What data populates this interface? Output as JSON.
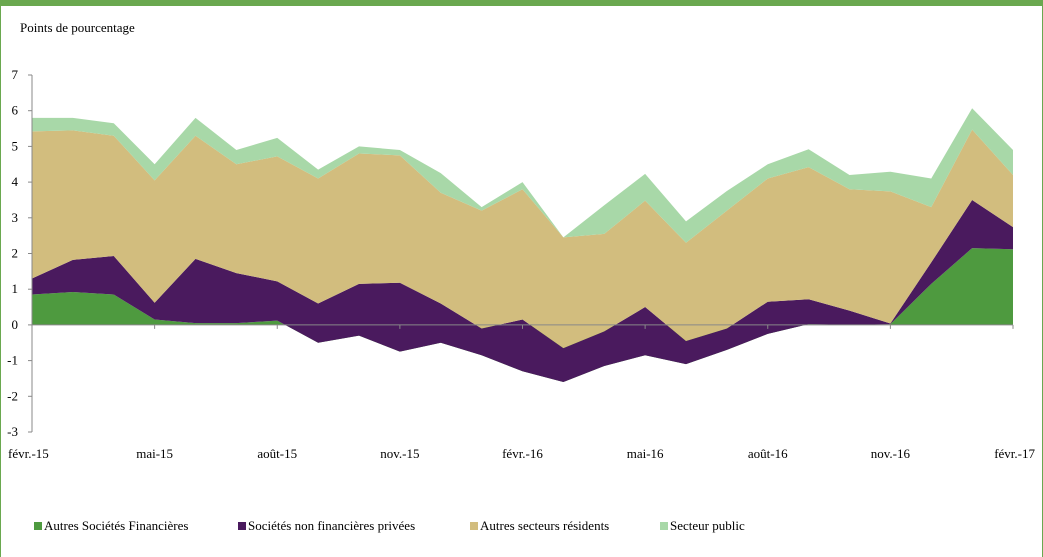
{
  "chart_data": {
    "type": "area",
    "stacked": true,
    "title": "",
    "unit_label": "Points de pourcentage",
    "xlabel": "",
    "ylabel": "",
    "ylim": [
      -3,
      7
    ],
    "yticks": [
      "-3",
      "-2",
      "-1",
      "0",
      "1",
      "2",
      "3",
      "4",
      "5",
      "6",
      "7"
    ],
    "x": [
      "févr.-15",
      "mars-15",
      "avr.-15",
      "mai-15",
      "juin-15",
      "juil.-15",
      "août-15",
      "sept.-15",
      "oct.-15",
      "nov.-15",
      "déc.-15",
      "janv.-16",
      "févr.-16",
      "mars-16",
      "avr.-16",
      "mai-16",
      "juin-16",
      "juil.-16",
      "août-16",
      "sept.-16",
      "oct.-16",
      "nov.-16",
      "déc.-16",
      "janv.-17",
      "févr.-17"
    ],
    "xtick_labels": [
      "févr.-15",
      "mai-15",
      "août-15",
      "nov.-15",
      "févr.-16",
      "mai-16",
      "août-16",
      "nov.-16",
      "févr.-17"
    ],
    "xtick_indices": [
      0,
      3,
      6,
      9,
      12,
      15,
      18,
      21,
      24
    ],
    "grid": false,
    "legend_position": "bottom-left",
    "series": [
      {
        "name": "Autres Sociétés Financières",
        "color": "#4e9a3f",
        "values": [
          0.85,
          0.92,
          0.85,
          0.15,
          0.05,
          0.05,
          0.12,
          -0.5,
          -0.3,
          -0.75,
          -0.5,
          -0.85,
          -1.3,
          -1.6,
          -1.15,
          -0.85,
          -1.1,
          -0.7,
          -0.25,
          0.02,
          0.0,
          0.02,
          1.15,
          2.15,
          2.12
        ]
      },
      {
        "name": "Sociétés non financières privées",
        "color": "#4a1a5e",
        "values": [
          0.45,
          0.9,
          1.08,
          0.47,
          1.8,
          1.4,
          1.1,
          1.1,
          1.45,
          1.93,
          1.1,
          0.75,
          1.45,
          0.95,
          0.97,
          1.35,
          0.65,
          0.6,
          0.9,
          0.7,
          0.4,
          0.02,
          0.6,
          1.35,
          0.62
        ]
      },
      {
        "name": "Autres secteurs résidents",
        "color": "#d2bd7e",
        "values": [
          4.12,
          3.63,
          3.37,
          3.43,
          3.45,
          3.05,
          3.5,
          3.5,
          3.65,
          3.57,
          3.1,
          3.3,
          3.65,
          3.1,
          2.73,
          2.98,
          2.75,
          3.3,
          3.45,
          3.7,
          3.4,
          3.7,
          1.55,
          1.97,
          1.46
        ]
      },
      {
        "name": "Secteur public",
        "color": "#a8d8a8",
        "values": [
          0.38,
          0.35,
          0.35,
          0.45,
          0.5,
          0.4,
          0.52,
          0.25,
          0.2,
          0.15,
          0.55,
          0.1,
          0.2,
          0.0,
          0.8,
          0.75,
          0.6,
          0.55,
          0.4,
          0.5,
          0.4,
          0.55,
          0.8,
          0.6,
          0.7
        ]
      }
    ]
  }
}
